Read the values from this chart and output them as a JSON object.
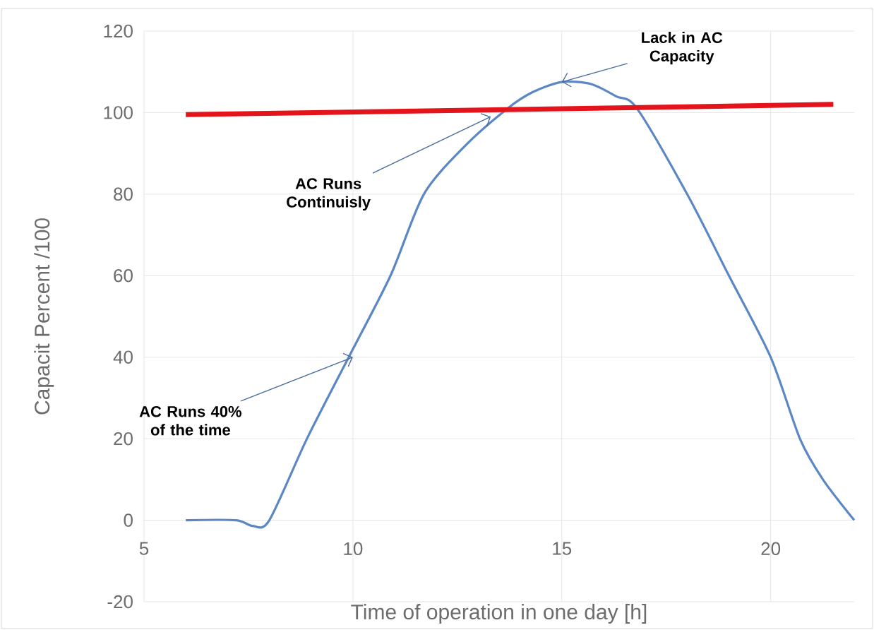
{
  "chart_data": {
    "type": "line",
    "xlabel": "Time of operation in one day [h]",
    "ylabel": "Capacit Percent /100",
    "xlim": [
      5,
      22
    ],
    "xticks": [
      5,
      10,
      15,
      20
    ],
    "ylim": [
      -20,
      120
    ],
    "yticks": [
      -20,
      0,
      20,
      40,
      60,
      80,
      100,
      120
    ],
    "grid": true,
    "marker": "none",
    "line_style": "solid",
    "series": [
      {
        "color": "#5b87c5",
        "x": [
          6,
          7.2,
          7.6,
          8,
          8.9,
          9.9,
          10.9,
          11.7,
          12.7,
          13.7,
          14.3,
          15,
          15.7,
          16.3,
          16.8,
          18,
          19,
          20,
          20.7,
          21.25,
          22
        ],
        "values": [
          0,
          0,
          -1.4,
          0,
          20,
          40,
          60,
          80,
          92,
          101,
          105,
          107.5,
          107,
          104,
          101,
          80,
          60,
          40,
          20,
          10,
          0
        ]
      },
      {
        "color": "#e3141b",
        "x": [
          6,
          21.5
        ],
        "values": [
          99.5,
          102
        ]
      }
    ],
    "annotations": [
      {
        "text": "Lack in AC Capacity",
        "x": 15,
        "y": 107.5
      },
      {
        "text": "AC Runs Continuisly",
        "x": 13.3,
        "y": 99
      },
      {
        "text": "AC Runs 40% of the time",
        "x": 10,
        "y": 40
      }
    ]
  }
}
